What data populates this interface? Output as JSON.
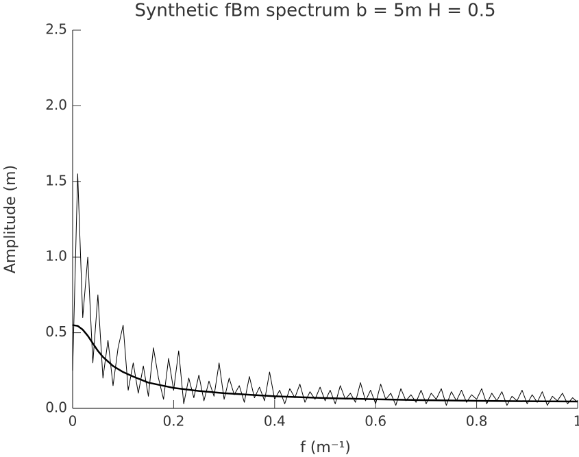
{
  "chart_data": {
    "type": "line",
    "title": "Synthetic fBm spectrum b = 5m  H = 0.5",
    "xlabel": "f (m⁻¹)",
    "ylabel": "Amplitude (m)",
    "xlim": [
      0,
      1
    ],
    "ylim": [
      0,
      2.5
    ],
    "xticks": [
      0,
      0.2,
      0.4,
      0.6,
      0.8,
      1
    ],
    "yticks": [
      {
        "value": 0,
        "label": "0.0"
      },
      0.5,
      {
        "value": 1,
        "label": "1.0"
      },
      1.5,
      {
        "value": 2,
        "label": "2.0"
      },
      2.5
    ],
    "series": [
      {
        "color": "#000000",
        "width": 1,
        "x": [
          0,
          0.01,
          0.02,
          0.03,
          0.04,
          0.05,
          0.06,
          0.07,
          0.08,
          0.09,
          0.1,
          0.11,
          0.12,
          0.13,
          0.14,
          0.15,
          0.16,
          0.17,
          0.18,
          0.19,
          0.2,
          0.21,
          0.22,
          0.23,
          0.24,
          0.25,
          0.26,
          0.27,
          0.28,
          0.29,
          0.3,
          0.31,
          0.32,
          0.33,
          0.34,
          0.35,
          0.36,
          0.37,
          0.38,
          0.39,
          0.4,
          0.41,
          0.42,
          0.43,
          0.44,
          0.45,
          0.46,
          0.47,
          0.48,
          0.49,
          0.5,
          0.51,
          0.52,
          0.53,
          0.54,
          0.55,
          0.56,
          0.57,
          0.58,
          0.59,
          0.6,
          0.61,
          0.62,
          0.63,
          0.64,
          0.65,
          0.66,
          0.67,
          0.68,
          0.69,
          0.7,
          0.71,
          0.72,
          0.73,
          0.74,
          0.75,
          0.76,
          0.77,
          0.78,
          0.79,
          0.8,
          0.81,
          0.82,
          0.83,
          0.84,
          0.85,
          0.86,
          0.87,
          0.88,
          0.89,
          0.9,
          0.91,
          0.92,
          0.93,
          0.94,
          0.95,
          0.96,
          0.97,
          0.98,
          0.99,
          1
        ],
        "values": [
          0.25,
          1.55,
          0.6,
          1.0,
          0.3,
          0.75,
          0.2,
          0.45,
          0.15,
          0.4,
          0.55,
          0.12,
          0.3,
          0.1,
          0.28,
          0.08,
          0.4,
          0.2,
          0.06,
          0.33,
          0.12,
          0.38,
          0.03,
          0.2,
          0.07,
          0.22,
          0.05,
          0.18,
          0.08,
          0.3,
          0.06,
          0.2,
          0.09,
          0.15,
          0.04,
          0.21,
          0.07,
          0.14,
          0.05,
          0.24,
          0.06,
          0.12,
          0.03,
          0.13,
          0.07,
          0.16,
          0.04,
          0.11,
          0.06,
          0.14,
          0.05,
          0.12,
          0.03,
          0.15,
          0.06,
          0.1,
          0.04,
          0.17,
          0.05,
          0.12,
          0.03,
          0.16,
          0.06,
          0.1,
          0.02,
          0.13,
          0.05,
          0.09,
          0.04,
          0.12,
          0.03,
          0.1,
          0.06,
          0.13,
          0.02,
          0.11,
          0.05,
          0.12,
          0.04,
          0.09,
          0.06,
          0.13,
          0.03,
          0.1,
          0.05,
          0.11,
          0.02,
          0.08,
          0.05,
          0.12,
          0.03,
          0.09,
          0.04,
          0.11,
          0.02,
          0.08,
          0.05,
          0.1,
          0.03,
          0.07,
          0.04
        ]
      },
      {
        "color": "#000000",
        "width": 2.5,
        "x": [
          0,
          0.01,
          0.02,
          0.03,
          0.04,
          0.05,
          0.06,
          0.08,
          0.1,
          0.12,
          0.15,
          0.2,
          0.25,
          0.3,
          0.4,
          0.5,
          0.6,
          0.7,
          0.8,
          0.9,
          1
        ],
        "values": [
          0.55,
          0.545,
          0.52,
          0.48,
          0.43,
          0.38,
          0.34,
          0.28,
          0.24,
          0.21,
          0.17,
          0.135,
          0.115,
          0.1,
          0.08,
          0.068,
          0.06,
          0.054,
          0.05,
          0.047,
          0.045
        ]
      }
    ]
  }
}
